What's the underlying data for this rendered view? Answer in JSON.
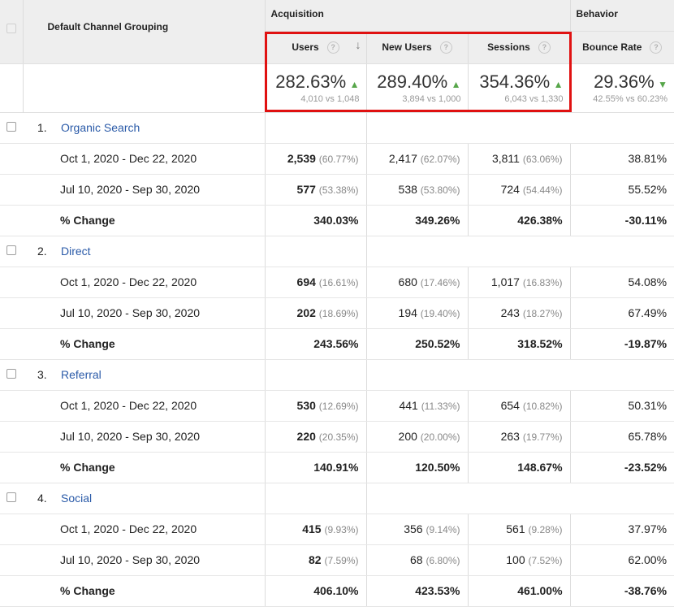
{
  "header": {
    "dimension": "Default Channel Grouping",
    "groups": {
      "acquisition": "Acquisition",
      "behavior": "Behavior"
    },
    "metrics": [
      {
        "label": "Users",
        "sorted": true
      },
      {
        "label": "New Users",
        "sorted": false
      },
      {
        "label": "Sessions",
        "sorted": false
      },
      {
        "label": "Bounce Rate",
        "sorted": false
      }
    ],
    "help": "?"
  },
  "summary": [
    {
      "value": "282.63%",
      "compare": "4,010 vs 1,048",
      "trend": "up"
    },
    {
      "value": "289.40%",
      "compare": "3,894 vs 1,000",
      "trend": "up"
    },
    {
      "value": "354.36%",
      "compare": "6,043 vs 1,330",
      "trend": "up"
    },
    {
      "value": "29.36%",
      "compare": "42.55% vs 60.23%",
      "trend": "down"
    }
  ],
  "channels": [
    {
      "index": "1.",
      "name": "Organic Search",
      "rows": [
        {
          "label": "Oct 1, 2020 - Dec 22, 2020",
          "users": "2,539",
          "users_pct": "(60.77%)",
          "new_users": "2,417",
          "new_users_pct": "(62.07%)",
          "sessions": "3,811",
          "sessions_pct": "(63.06%)",
          "bounce": "38.81%"
        },
        {
          "label": "Jul 10, 2020 - Sep 30, 2020",
          "users": "577",
          "users_pct": "(53.38%)",
          "new_users": "538",
          "new_users_pct": "(53.80%)",
          "sessions": "724",
          "sessions_pct": "(54.44%)",
          "bounce": "55.52%"
        }
      ],
      "change": {
        "label": "% Change",
        "users": "340.03%",
        "new_users": "349.26%",
        "sessions": "426.38%",
        "bounce": "-30.11%"
      }
    },
    {
      "index": "2.",
      "name": "Direct",
      "rows": [
        {
          "label": "Oct 1, 2020 - Dec 22, 2020",
          "users": "694",
          "users_pct": "(16.61%)",
          "new_users": "680",
          "new_users_pct": "(17.46%)",
          "sessions": "1,017",
          "sessions_pct": "(16.83%)",
          "bounce": "54.08%"
        },
        {
          "label": "Jul 10, 2020 - Sep 30, 2020",
          "users": "202",
          "users_pct": "(18.69%)",
          "new_users": "194",
          "new_users_pct": "(19.40%)",
          "sessions": "243",
          "sessions_pct": "(18.27%)",
          "bounce": "67.49%"
        }
      ],
      "change": {
        "label": "% Change",
        "users": "243.56%",
        "new_users": "250.52%",
        "sessions": "318.52%",
        "bounce": "-19.87%"
      }
    },
    {
      "index": "3.",
      "name": "Referral",
      "rows": [
        {
          "label": "Oct 1, 2020 - Dec 22, 2020",
          "users": "530",
          "users_pct": "(12.69%)",
          "new_users": "441",
          "new_users_pct": "(11.33%)",
          "sessions": "654",
          "sessions_pct": "(10.82%)",
          "bounce": "50.31%"
        },
        {
          "label": "Jul 10, 2020 - Sep 30, 2020",
          "users": "220",
          "users_pct": "(20.35%)",
          "new_users": "200",
          "new_users_pct": "(20.00%)",
          "sessions": "263",
          "sessions_pct": "(19.77%)",
          "bounce": "65.78%"
        }
      ],
      "change": {
        "label": "% Change",
        "users": "140.91%",
        "new_users": "120.50%",
        "sessions": "148.67%",
        "bounce": "-23.52%"
      }
    },
    {
      "index": "4.",
      "name": "Social",
      "rows": [
        {
          "label": "Oct 1, 2020 - Dec 22, 2020",
          "users": "415",
          "users_pct": "(9.93%)",
          "new_users": "356",
          "new_users_pct": "(9.14%)",
          "sessions": "561",
          "sessions_pct": "(9.28%)",
          "bounce": "37.97%"
        },
        {
          "label": "Jul 10, 2020 - Sep 30, 2020",
          "users": "82",
          "users_pct": "(7.59%)",
          "new_users": "68",
          "new_users_pct": "(6.80%)",
          "sessions": "100",
          "sessions_pct": "(7.52%)",
          "bounce": "62.00%"
        }
      ],
      "change": {
        "label": "% Change",
        "users": "406.10%",
        "new_users": "423.53%",
        "sessions": "461.00%",
        "bounce": "-38.76%"
      }
    }
  ],
  "colors": {
    "link": "#2a5aa8",
    "trend": "#57a64a",
    "highlight": "#e01111",
    "header_bg": "#eeeeee"
  }
}
